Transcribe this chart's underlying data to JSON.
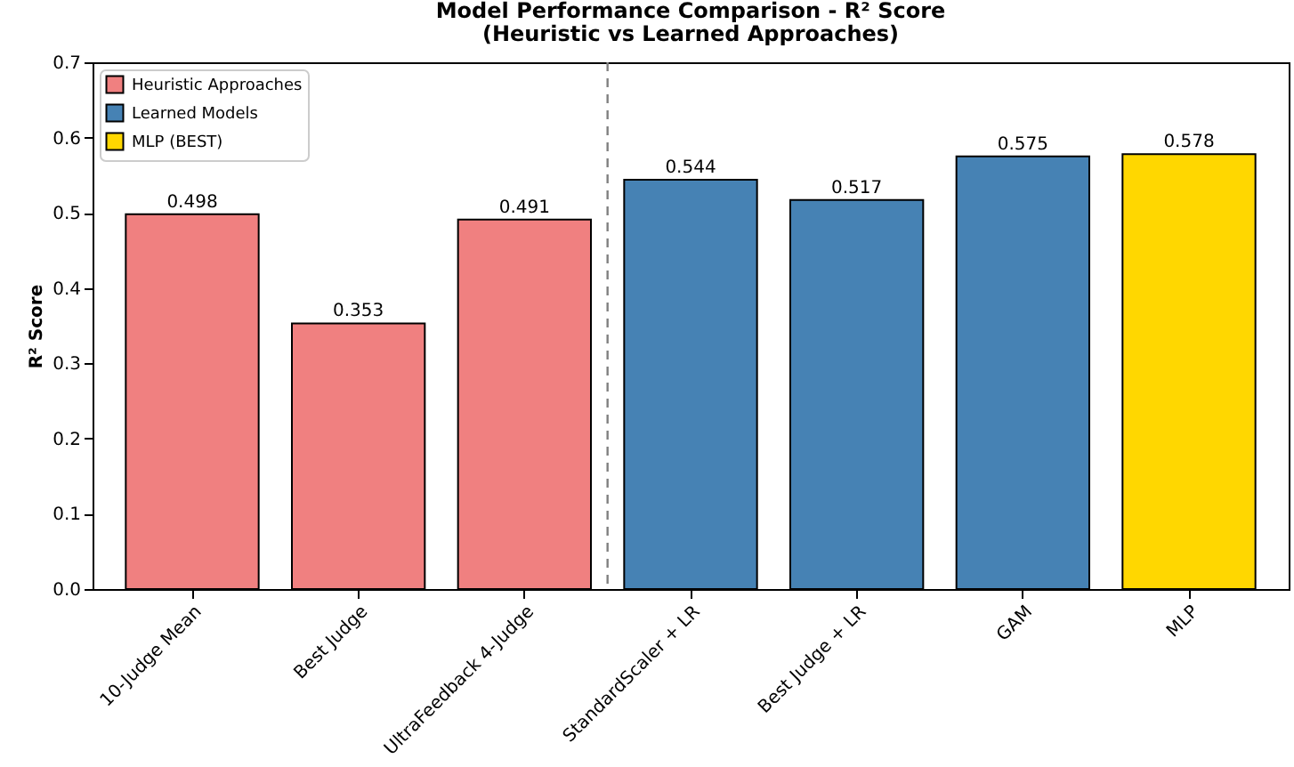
{
  "chart_data": {
    "type": "bar",
    "title": "Model Performance Comparison - R² Score",
    "subtitle": "(Heuristic vs Learned Approaches)",
    "ylabel": "R² Score",
    "categories": [
      "10-Judge Mean",
      "Best Judge",
      "UltraFeedback 4-Judge",
      "StandardScaler + LR",
      "Best Judge + LR",
      "GAM",
      "MLP"
    ],
    "series": [
      {
        "name": "Heuristic Approaches",
        "color": "#f08080",
        "values": [
          0.498,
          0.353,
          0.491,
          null,
          null,
          null,
          null
        ]
      },
      {
        "name": "Learned Models",
        "color": "#4682b4",
        "values": [
          null,
          null,
          null,
          0.544,
          0.517,
          0.575,
          null
        ]
      },
      {
        "name": "MLP (BEST)",
        "color": "#ffd700",
        "values": [
          null,
          null,
          null,
          null,
          null,
          null,
          0.578
        ]
      }
    ],
    "ylim": [
      0,
      0.7
    ],
    "yticks": [
      {
        "value": 0,
        "label": "0.0"
      },
      0.1,
      0.2,
      0.3,
      0.4,
      0.5,
      0.6,
      0.7
    ],
    "data_labels": true,
    "legend": "top left",
    "grid": false
  }
}
